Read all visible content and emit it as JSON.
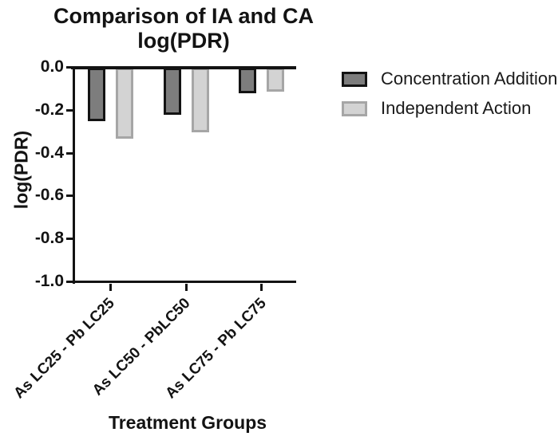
{
  "chart_data": {
    "type": "bar",
    "title_lines": [
      "Comparison of IA and CA",
      "log(PDR)"
    ],
    "xlabel": "Treatment Groups",
    "ylabel": "log(PDR)",
    "categories": [
      "As LC25 - Pb LC25",
      "As LC50 - PbLC50",
      "As LC75 - Pb LC75"
    ],
    "series": [
      {
        "name": "Concentration Addition",
        "values": [
          -0.25,
          -0.22,
          -0.12
        ],
        "fill_color": "#7d7d7d",
        "border_color": "#131313"
      },
      {
        "name": "Independent Action",
        "values": [
          -0.33,
          -0.3,
          -0.11
        ],
        "fill_color": "#d3d3d3",
        "border_color": "#a6a6a6"
      }
    ],
    "ylim": [
      -1.0,
      0.0
    ],
    "yticks": [
      0.0,
      -0.2,
      -0.4,
      -0.6,
      -0.8,
      -1.0
    ],
    "ytick_labels": [
      "0.0",
      "-0.2",
      "-0.4",
      "-0.6",
      "-0.8",
      "-1.0"
    ],
    "grid": false,
    "legend_position": "right",
    "background_color": "#ffffff",
    "axis_color": "#131313",
    "text_color": "#131313"
  }
}
